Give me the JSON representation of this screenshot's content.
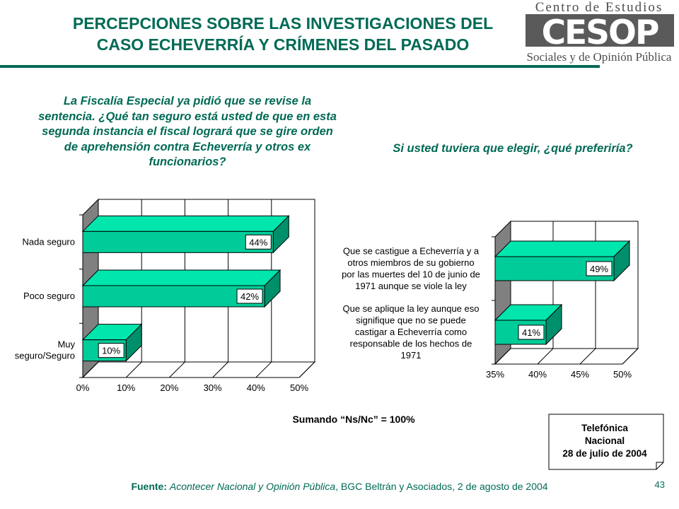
{
  "header": {
    "title_line1": "PERCEPCIONES SOBRE LAS INVESTIGACIONES DEL",
    "title_line2": "CASO ECHEVERRÍA Y CRÍMENES DEL PASADO",
    "logo_top": "Centro de Estudios",
    "logo_mid": "CESOP",
    "logo_bottom": "Sociales y de Opinión Pública"
  },
  "questions": {
    "left": "La Fiscalía Especial ya pidió que se revise la sentencia. ¿Qué tan seguro está usted de que en esta segunda instancia el fiscal logrará que se gire orden de aprehensión contra Echeverría y otros ex funcionarios?",
    "right": "Si usted tuviera que elegir, ¿qué preferiría?"
  },
  "colors": {
    "accent": "#006a55",
    "bar_front": "#00cc99",
    "bar_top": "#00e6ad",
    "bar_side": "#008f6b",
    "wall_side": "#808080"
  },
  "chart_data": [
    {
      "type": "bar",
      "orientation": "horizontal",
      "categories": [
        "Nada seguro",
        "Poco seguro",
        "Muy seguro/Seguro"
      ],
      "category_lines": [
        [
          "Nada seguro"
        ],
        [
          "Poco seguro"
        ],
        [
          "Muy",
          "seguro/Seguro"
        ]
      ],
      "values": [
        44,
        42,
        10
      ],
      "data_labels": [
        "44%",
        "42%",
        "10%"
      ],
      "xlim": [
        0,
        50
      ],
      "xticks": [
        "0%",
        "10%",
        "20%",
        "30%",
        "40%",
        "50%"
      ],
      "grid": true
    },
    {
      "type": "bar",
      "orientation": "horizontal",
      "categories": [
        "Que se castigue a Echeverría y a otros miembros de su gobierno por las muertes del 10 de junio de 1971 aunque se viole la ley",
        "Que se aplique la ley aunque eso signifique que no se puede castigar a Echeverría como responsable de los hechos de 1971"
      ],
      "category_lines": [
        [
          "Que se castigue a Echeverría y a",
          "otros miembros de su gobierno",
          "por las muertes del 10 de junio de",
          "1971 aunque se viole la ley"
        ],
        [
          "Que se aplique la ley aunque eso",
          "signifique que no se puede",
          "castigar a Echeverría como",
          "responsable de los hechos de",
          "1971"
        ]
      ],
      "values": [
        49,
        41
      ],
      "data_labels": [
        "49%",
        "41%"
      ],
      "xlim": [
        35,
        50
      ],
      "xticks": [
        "35%",
        "40%",
        "45%",
        "50%"
      ],
      "grid": true
    }
  ],
  "note": "Sumando “Ns/Nc” = 100%",
  "notebox": {
    "line1": "Telefónica",
    "line2": "Nacional",
    "line3": "28 de julio de 2004"
  },
  "footer": {
    "source_label": "Fuente:",
    "source_italic": "Acontecer Nacional y Opinión Pública",
    "source_rest": ", BGC Beltrán y Asociados, 2 de agosto de 2004",
    "page": "43"
  }
}
